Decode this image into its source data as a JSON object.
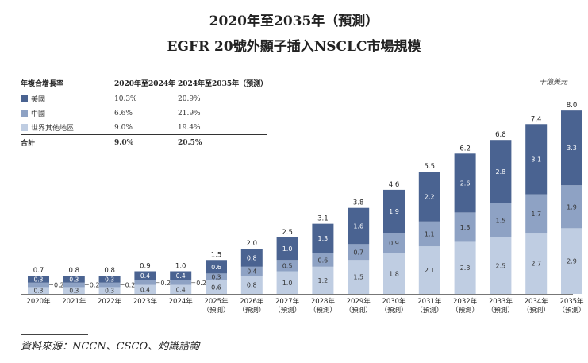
{
  "title_line1": "2020年至2035年（預測）",
  "title_line2": "EGFR 20號外顯子插入NSCLC市場規模",
  "unit_label": "十億美元",
  "source": "資料來源：NCCN、CSCO、灼識諮詢",
  "cagr_table": {
    "header": [
      "年複合增長率",
      "2020年至2024年",
      "2024年至2035年（預測）"
    ],
    "rows": [
      {
        "name": "美國",
        "v1": "10.3%",
        "v2": "20.9%",
        "color": "#4a6391"
      },
      {
        "name": "中國",
        "v1": "6.6%",
        "v2": "21.9%",
        "color": "#8ea2c4"
      },
      {
        "name": "世界其他地區",
        "v1": "9.0%",
        "v2": "19.4%",
        "color": "#bfcde2"
      }
    ],
    "total": {
      "name": "合計",
      "v1": "9.0%",
      "v2": "20.5%"
    }
  },
  "chart_data": {
    "type": "bar",
    "stacked": true,
    "categories": [
      "2020年",
      "2021年",
      "2022年",
      "2023年",
      "2024年",
      "2025年",
      "2026年",
      "2027年",
      "2028年",
      "2029年",
      "2030年",
      "2031年",
      "2032年",
      "2033年",
      "2034年",
      "2035年"
    ],
    "forecast_label": "（預測）",
    "forecast_from_index": 5,
    "series": [
      {
        "name": "世界其他地區",
        "color": "#bfcde2",
        "values": [
          0.3,
          0.3,
          0.3,
          0.4,
          0.4,
          0.6,
          0.8,
          1.0,
          1.2,
          1.5,
          1.8,
          2.1,
          2.3,
          2.5,
          2.7,
          2.9
        ]
      },
      {
        "name": "中國",
        "color": "#8ea2c4",
        "values": [
          0.2,
          0.2,
          0.2,
          0.2,
          0.2,
          0.3,
          0.4,
          0.5,
          0.6,
          0.7,
          0.9,
          1.1,
          1.3,
          1.5,
          1.7,
          1.9
        ]
      },
      {
        "name": "美國",
        "color": "#4a6391",
        "values": [
          0.3,
          0.3,
          0.3,
          0.4,
          0.4,
          0.6,
          0.8,
          1.0,
          1.3,
          1.6,
          1.9,
          2.2,
          2.6,
          2.8,
          3.1,
          3.3
        ]
      }
    ],
    "totals": [
      0.7,
      0.8,
      0.8,
      0.9,
      1.0,
      1.5,
      2.0,
      2.5,
      3.1,
      3.8,
      4.6,
      5.5,
      6.2,
      6.8,
      7.4,
      8.0
    ],
    "ylim": [
      0,
      8.0
    ]
  }
}
